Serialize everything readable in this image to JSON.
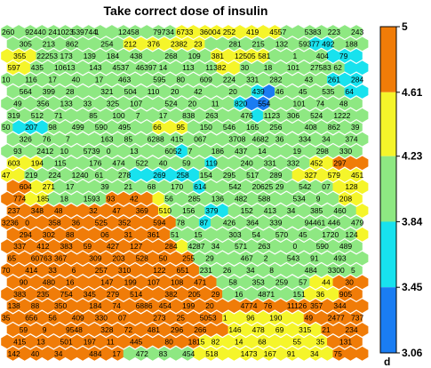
{
  "chart_data": {
    "type": "heatmap",
    "title": "Take correct dose of insulin",
    "colorbar": {
      "title": "d",
      "ticks": [
        5,
        4.61,
        4.23,
        3.84,
        3.45,
        3.06
      ],
      "tick_labels": [
        "5",
        "4.61",
        "4.23",
        "3.84",
        "3.45",
        "3.06"
      ],
      "bands": [
        {
          "from": 4.61,
          "to": 5,
          "color": "#f07c08"
        },
        {
          "from": 4.23,
          "to": 4.61,
          "color": "#f5f52a"
        },
        {
          "from": 3.84,
          "to": 4.23,
          "color": "#8ee882"
        },
        {
          "from": 3.45,
          "to": 3.84,
          "color": "#18e2ee"
        },
        {
          "from": 3.06,
          "to": 3.45,
          "color": "#1a7df2"
        }
      ]
    },
    "grid": {
      "cols": 31,
      "rows": 28,
      "shape": "hexagonal"
    },
    "cell_labels": [
      "260",
      "92440",
      "241023",
      "539744",
      "1",
      "12458",
      "79734",
      "6733",
      "36004",
      "252",
      "419",
      "4557",
      "5383",
      "223",
      "243",
      "305",
      "213",
      "862",
      "254",
      "212",
      "376",
      "2382",
      "23",
      "281",
      "215",
      "132",
      "59377",
      "492",
      "188",
      "355",
      "22253",
      "173",
      "139",
      "184",
      "438",
      "268",
      "109",
      "381",
      "12505",
      "581",
      "1",
      "404",
      "79",
      "597",
      "435",
      "10613",
      "143",
      "4537",
      "46397",
      "14",
      "113",
      "11382",
      "30",
      "18",
      "101",
      "27583",
      "62",
      "10",
      "116",
      "17",
      "40",
      "17",
      "463",
      "595",
      "80",
      "609",
      "224",
      "331",
      "282",
      "43",
      "261",
      "284",
      "564",
      "399",
      "28",
      "321",
      "504",
      "110",
      "20",
      "42",
      "20",
      "439",
      "46",
      "45",
      "535",
      "64",
      "49",
      "356",
      "133",
      "33",
      "325",
      "107",
      "524",
      "20",
      "11",
      "820",
      "554",
      "101",
      "74",
      "48",
      "319",
      "512",
      "71",
      "85",
      "100",
      "7",
      "17",
      "838",
      "263",
      "476",
      "1123",
      "306",
      "524",
      "1222",
      "50",
      "207",
      "98",
      "499",
      "590",
      "495",
      "66",
      "95",
      "150",
      "546",
      "165",
      "256",
      "408",
      "862",
      "39",
      "326",
      "76",
      "7",
      "163",
      "85",
      "6288",
      "415",
      "067",
      "3708",
      "4682",
      "36",
      "334",
      "34",
      "374",
      "93",
      "2412",
      "10",
      "5739",
      "0",
      "13",
      "6052",
      "7",
      "186",
      "437",
      "14",
      "19",
      "298",
      "330",
      "603",
      "194",
      "115",
      "176",
      "474",
      "522",
      "40",
      "59",
      "119",
      "240",
      "331",
      "332",
      "452",
      "297",
      "47",
      "219",
      "224",
      "1240",
      "61",
      "278",
      "269",
      "258",
      "154",
      "295",
      "517",
      "289",
      "327",
      "579",
      "451",
      "604",
      "271",
      "17",
      "39",
      "21",
      "68",
      "170",
      "614",
      "542",
      "20625",
      "29",
      "542",
      "07",
      "128",
      "774",
      "185",
      "18",
      "1593",
      "93",
      "42",
      "56",
      "285",
      "136",
      "482",
      "588",
      "534",
      "9",
      "208",
      "237",
      "348",
      "48",
      "32",
      "47",
      "369",
      "510",
      "156",
      "379",
      "152",
      "413",
      "34",
      "385",
      "460",
      "3236",
      "0",
      "358",
      "36",
      "525",
      "352",
      "594",
      "78",
      "87",
      "426",
      "364",
      "339",
      "94461",
      "446",
      "479",
      "294",
      "302",
      "88",
      "06",
      "31",
      "361",
      "51",
      "15",
      "303",
      "54",
      "570",
      "45",
      "1720",
      "124",
      "337",
      "412",
      "383",
      "59",
      "427",
      "127",
      "284",
      "4287",
      "34",
      "571",
      "263",
      "0",
      "590",
      "489",
      "65",
      "60763",
      "367",
      "309",
      "203",
      "528",
      "50",
      "255",
      "29",
      "467",
      "2",
      "543",
      "91",
      "493",
      "70",
      "414",
      "33",
      "6",
      "257",
      "310",
      "122",
      "651",
      "231",
      "26",
      "34",
      "8",
      "484",
      "3300",
      "5",
      "90",
      "480",
      "16",
      "147",
      "199",
      "107",
      "108",
      "471",
      "58",
      "353",
      "259",
      "57",
      "44",
      "30",
      "383",
      "235",
      "754",
      "345",
      "279",
      "514",
      "382",
      "205",
      "29",
      "16",
      "4871",
      "151",
      "36",
      "905",
      "138",
      "88",
      "350",
      "184",
      "74",
      "6886",
      "454",
      "199",
      "20",
      "4774",
      "76",
      "11126",
      "357",
      "344",
      "35",
      "656",
      "56",
      "409",
      "330",
      "07",
      "273",
      "25",
      "5053",
      "1",
      "96",
      "190",
      "49",
      "2477",
      "737",
      "59",
      "9",
      "9548",
      "328",
      "72",
      "481",
      "296",
      "266",
      "146",
      "478",
      "69",
      "315",
      "21",
      "234",
      "415",
      "13",
      "501",
      "197",
      "11",
      "445",
      "80",
      "1815",
      "82",
      "14",
      "68",
      "55",
      "35",
      "131",
      "142",
      "40",
      "34",
      "484",
      "17",
      "472",
      "83",
      "454",
      "518",
      "1473",
      "167",
      "91",
      "34",
      "75"
    ]
  }
}
